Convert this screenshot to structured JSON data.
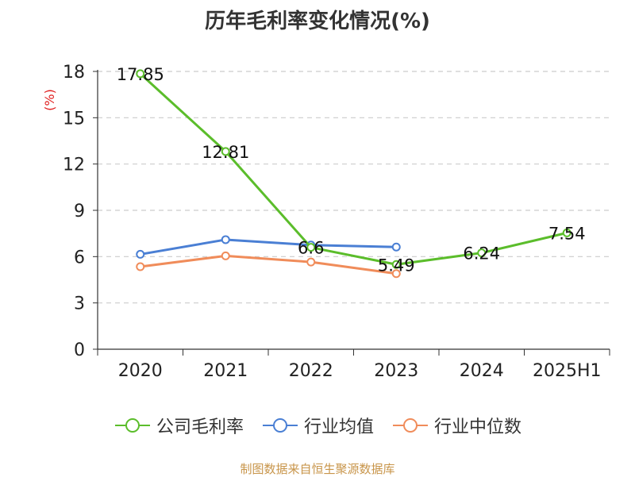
{
  "title": "历年毛利率变化情况(%)",
  "source_note": "制图数据来自恒生聚源数据库",
  "colors": {
    "axis": "#333333",
    "grid": "#cccccc",
    "unit": "#e02020"
  },
  "chart_data": {
    "type": "line",
    "title": "历年毛利率变化情况(%)",
    "ylabel": "(%)",
    "xlabel": "",
    "categories": [
      "2020",
      "2021",
      "2022",
      "2023",
      "2024",
      "2025H1"
    ],
    "ylim": [
      0,
      18
    ],
    "yticks": [
      0,
      3,
      6,
      9,
      12,
      15,
      18
    ],
    "grid": true,
    "legend_position": "bottom",
    "series": [
      {
        "name": "公司毛利率",
        "color": "#5bbd2b",
        "values": [
          17.85,
          12.81,
          6.6,
          5.49,
          6.24,
          7.54
        ],
        "labels": [
          "17.85",
          "12.81",
          "6.6",
          "5.49",
          "6.24",
          "7.54"
        ]
      },
      {
        "name": "行业均值",
        "color": "#4a7fd4",
        "values": [
          6.15,
          7.1,
          6.75,
          6.62,
          null,
          null
        ],
        "labels": null
      },
      {
        "name": "行业中位数",
        "color": "#f08c5a",
        "values": [
          5.35,
          6.05,
          5.65,
          4.9,
          null,
          null
        ],
        "labels": null
      }
    ]
  }
}
